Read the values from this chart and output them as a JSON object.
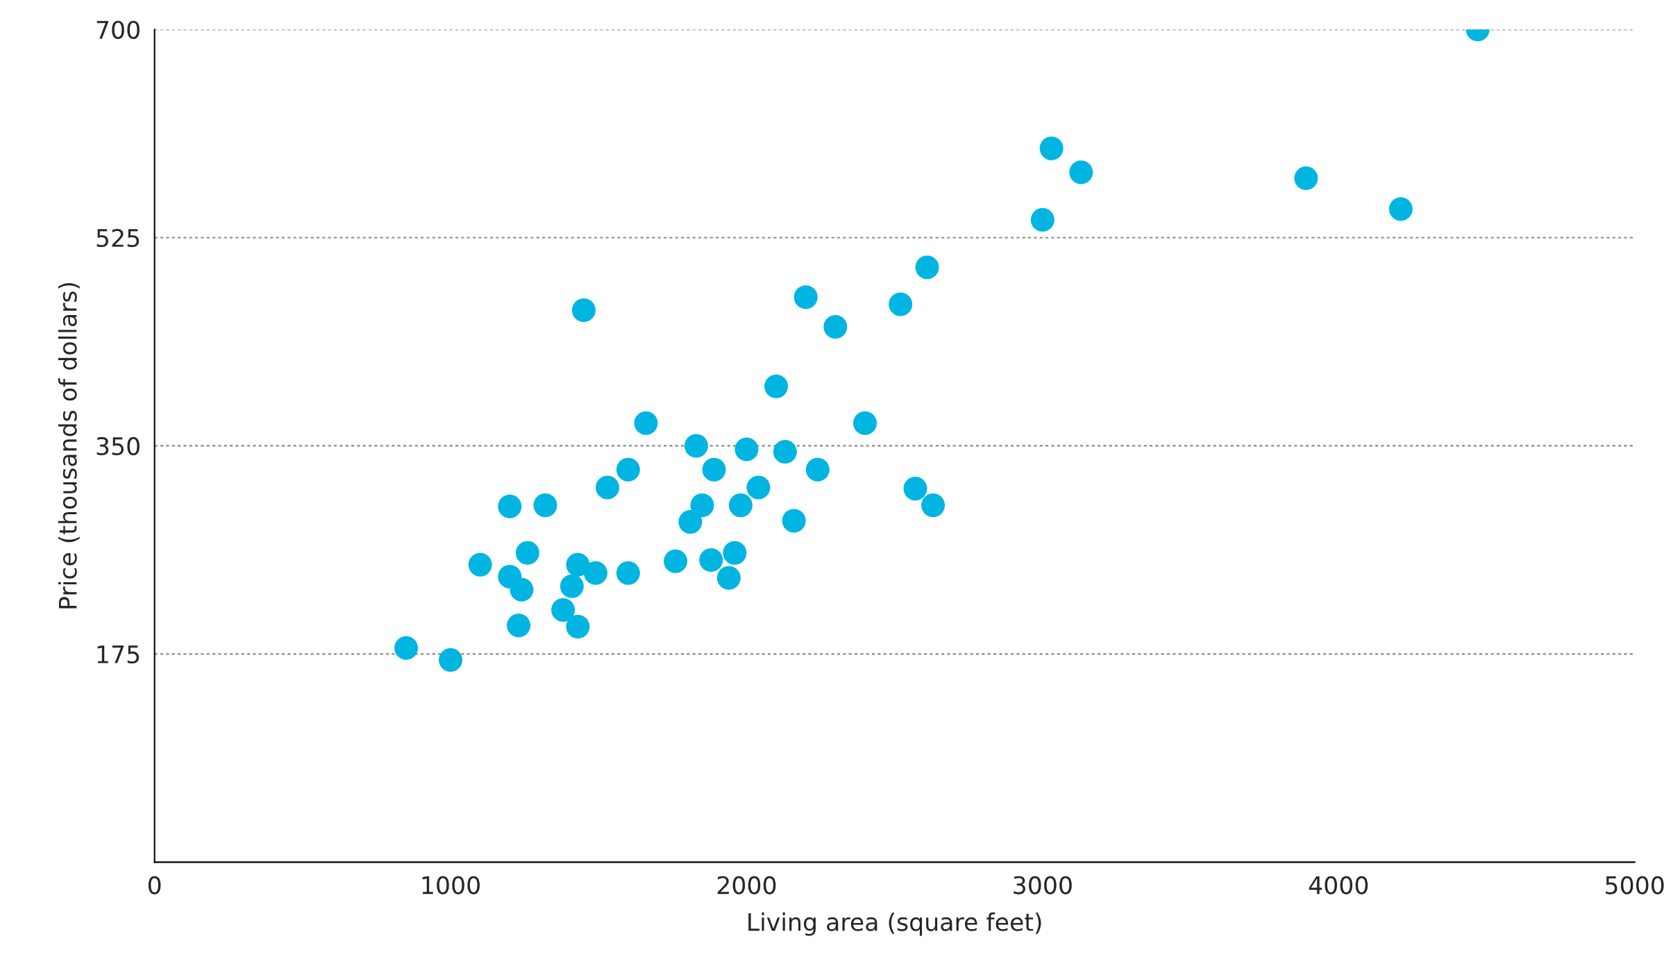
{
  "chart_data": {
    "type": "scatter",
    "xlabel": "Living area (square feet)",
    "ylabel": "Price (thousands of dollars)",
    "xlim": [
      0,
      5000
    ],
    "xticks": [
      0,
      1000,
      2000,
      3000,
      4000,
      5000
    ],
    "ylim": [
      0,
      700
    ],
    "yticks": [
      175,
      350,
      525,
      700
    ],
    "grid": "y",
    "marker": "circle",
    "legend": false,
    "series": [
      {
        "color": "#00b5e2",
        "x": [
          850,
          1000,
          1100,
          1200,
          1200,
          1240,
          1230,
          1260,
          1320,
          1380,
          1410,
          1430,
          1430,
          1450,
          1490,
          1530,
          1600,
          1600,
          1660,
          1760,
          1810,
          1830,
          1850,
          1880,
          1890,
          1940,
          1960,
          1980,
          2000,
          2040,
          2100,
          2130,
          2160,
          2200,
          2240,
          2300,
          2400,
          2520,
          2570,
          2610,
          2630,
          3000,
          3030,
          3130,
          3890,
          4210,
          4470
        ],
        "values": [
          180,
          170,
          250,
          299,
          240,
          229,
          199,
          260,
          300,
          212,
          232,
          250,
          198,
          464,
          243,
          315,
          330,
          243,
          369,
          253,
          286,
          350,
          300,
          254,
          330,
          239,
          260,
          300,
          347,
          315,
          400,
          345,
          287,
          475,
          330,
          450,
          369,
          469,
          314,
          500,
          300,
          540,
          600,
          580,
          575,
          549,
          700
        ]
      }
    ]
  }
}
